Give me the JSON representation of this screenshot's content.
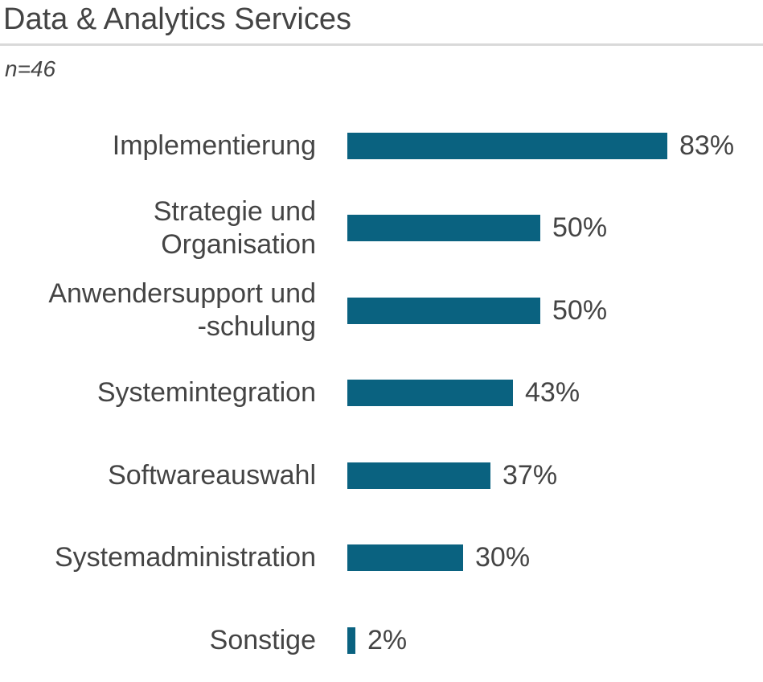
{
  "header": {
    "title": "Data & Analytics Services",
    "sample_size": "n=46"
  },
  "chart_data": {
    "type": "bar",
    "orientation": "horizontal",
    "title": "Data & Analytics Services",
    "subtitle": "n=46",
    "categories": [
      "Implementierung",
      "Strategie und\nOrganisation",
      "Anwendersupport und\n-schulung",
      "Systemintegration",
      "Softwareauswahl",
      "Systemadministration",
      "Sonstige"
    ],
    "values": [
      83,
      50,
      50,
      43,
      37,
      30,
      2
    ],
    "value_labels": [
      "83%",
      "50%",
      "50%",
      "43%",
      "37%",
      "30%",
      "2%"
    ],
    "xlabel": "",
    "ylabel": "",
    "xlim": [
      0,
      100
    ],
    "grid": false,
    "legend": false,
    "bar_color": "#0a6280",
    "text_color": "#444444",
    "separator_color": "#d9d9d9"
  }
}
